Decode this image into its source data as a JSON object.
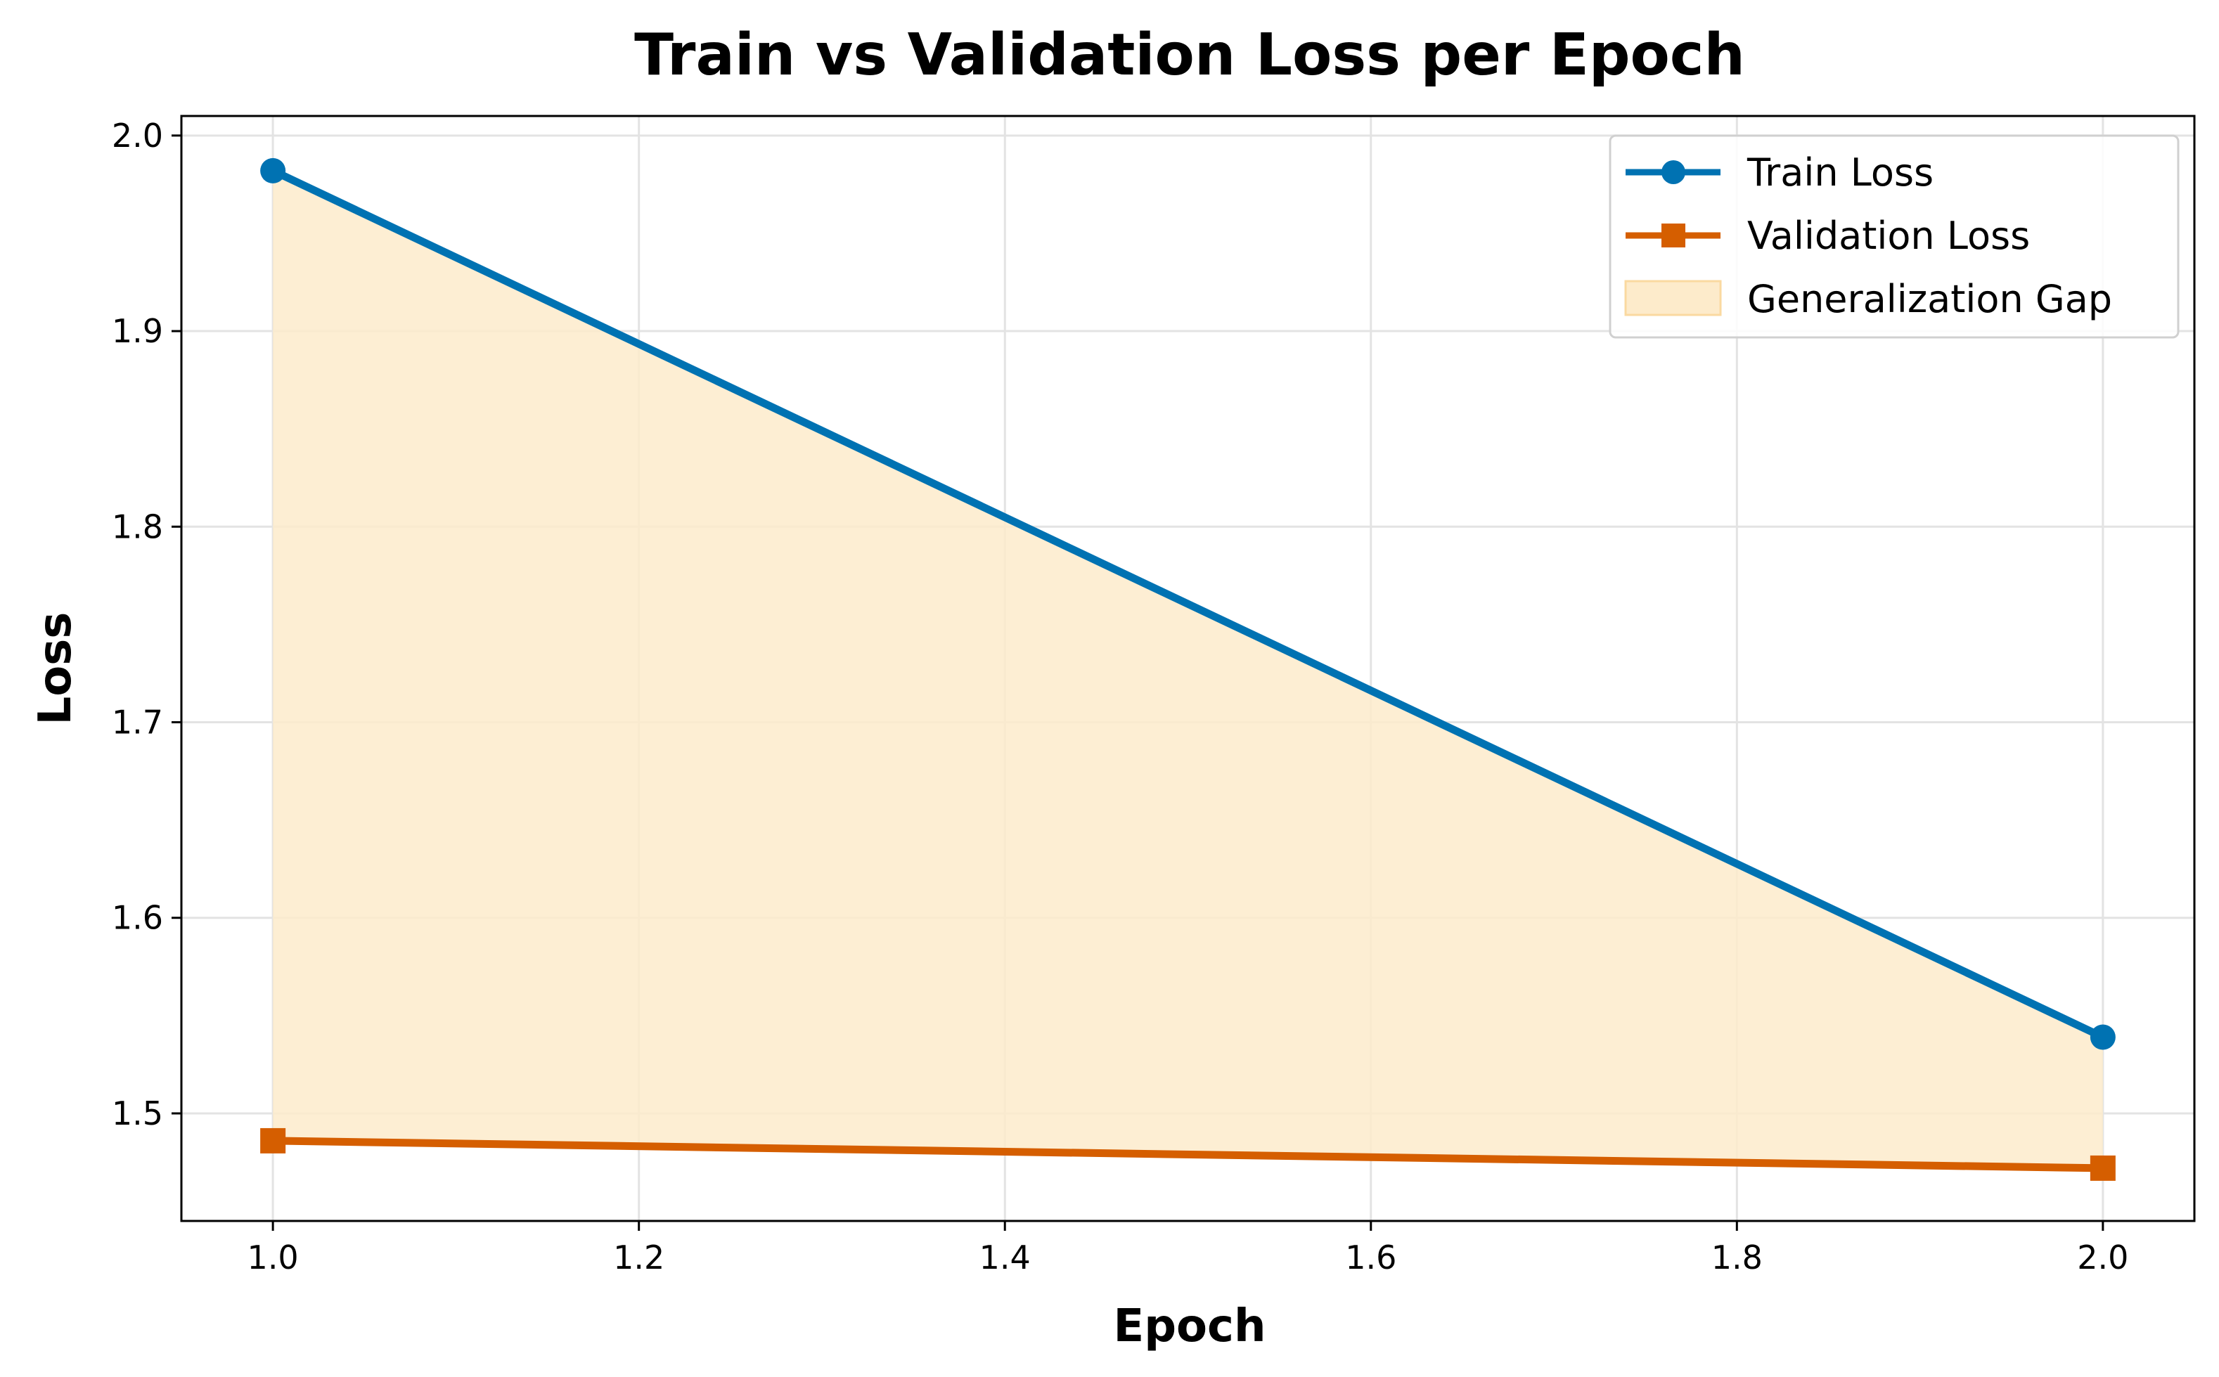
{
  "chart_data": {
    "type": "line",
    "title": "Train vs Validation Loss per Epoch",
    "xlabel": "Epoch",
    "ylabel": "Loss",
    "x": [
      1.0,
      2.0
    ],
    "xlim": [
      0.95,
      2.05
    ],
    "ylim": [
      1.445,
      2.01
    ],
    "xticks": [
      1.0,
      1.2,
      1.4,
      1.6,
      1.8,
      2.0
    ],
    "yticks": [
      1.5,
      1.6,
      1.7,
      1.8,
      1.9,
      2.0
    ],
    "xtick_labels": [
      "1.0",
      "1.2",
      "1.4",
      "1.6",
      "1.8",
      "2.0"
    ],
    "ytick_labels": [
      "1.5",
      "1.6",
      "1.7",
      "1.8",
      "1.9",
      "2.0"
    ],
    "grid": true,
    "legend_position": "top-right",
    "series": [
      {
        "name": "Train Loss",
        "values": [
          1.982,
          1.539
        ],
        "color": "#0072B2",
        "marker": "circle"
      },
      {
        "name": "Validation Loss",
        "values": [
          1.486,
          1.472
        ],
        "color": "#D55E00",
        "marker": "square"
      }
    ],
    "fill": {
      "name": "Generalization Gap",
      "between": [
        "Train Loss",
        "Validation Loss"
      ],
      "color": "#FDEBCB"
    }
  }
}
